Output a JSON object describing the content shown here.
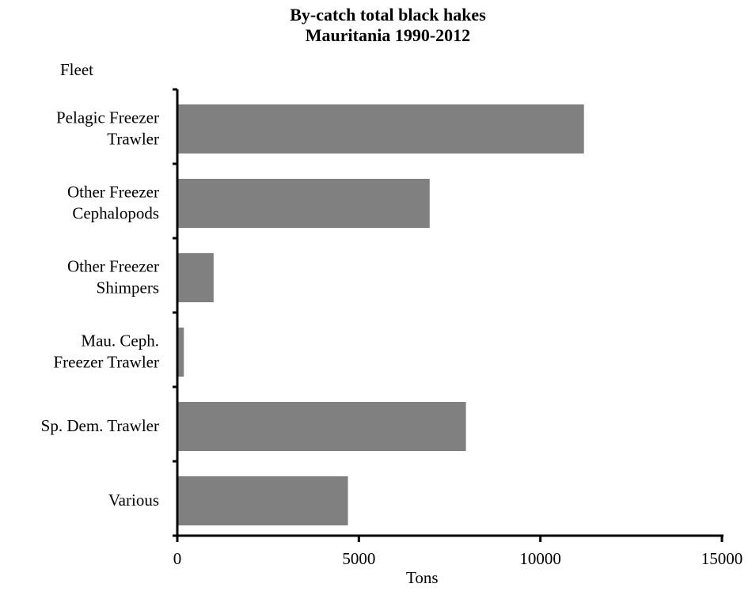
{
  "chart_data": {
    "type": "bar",
    "orientation": "horizontal",
    "title": [
      "By-catch total black hakes",
      "Mauritania 1990-2012"
    ],
    "ylabel": "Fleet",
    "xlabel": "Tons",
    "categories": [
      [
        "Pelagic Freezer",
        "Trawler"
      ],
      [
        "Other Freezer",
        "Cephalopods"
      ],
      [
        "Other Freezer",
        "Shimpers"
      ],
      [
        "Mau. Ceph.",
        "Freezer Trawler"
      ],
      [
        "Sp. Dem. Trawler"
      ],
      [
        "Various"
      ]
    ],
    "values": [
      11200,
      6950,
      1000,
      180,
      7950,
      4700
    ],
    "xlim": [
      0,
      15000
    ],
    "xticks": [
      0,
      5000,
      10000,
      15000
    ],
    "grid": false,
    "legend": "none",
    "bar_color": "#808080"
  }
}
